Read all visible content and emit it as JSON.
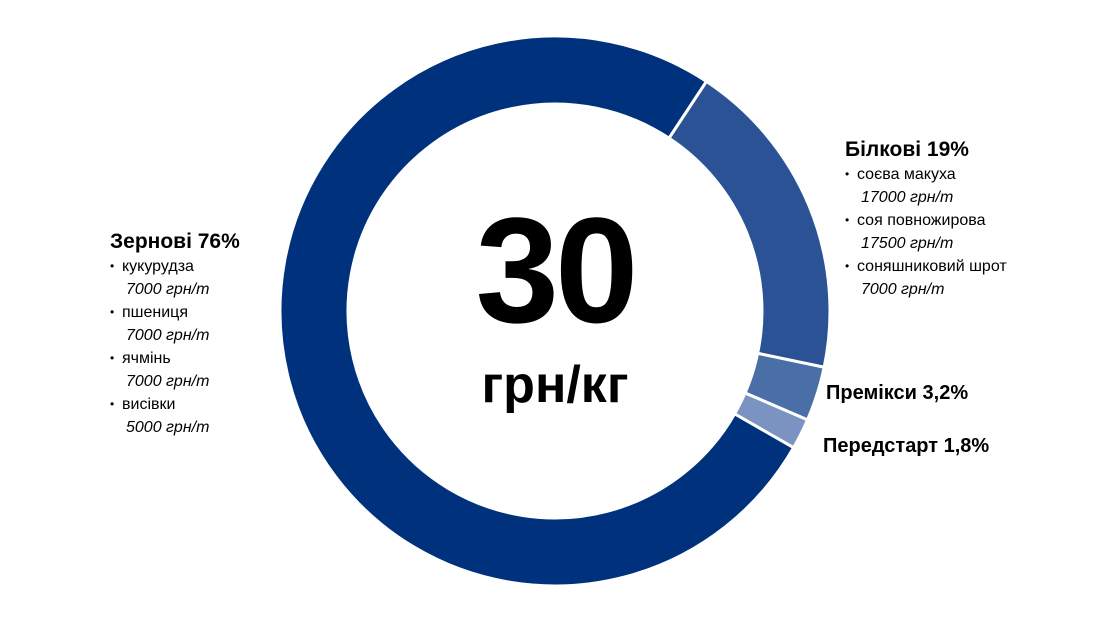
{
  "chart_data": {
    "type": "pie",
    "donut": true,
    "start_angle_deg": 33.4,
    "slices": [
      {
        "label": "Білкові",
        "percent_label": "19%",
        "value": 19,
        "color": "#2a5294"
      },
      {
        "label": "Премікси",
        "percent_label": "3,2%",
        "value": 3.2,
        "color": "#4a6ea6"
      },
      {
        "label": "Передстарт",
        "percent_label": "1,8%",
        "value": 1.8,
        "color": "#7a93c0"
      },
      {
        "label": "Зернові",
        "percent_label": "76%",
        "value": 76,
        "color": "#00317d"
      }
    ],
    "center": {
      "value": "30",
      "unit": "грн/кг"
    },
    "groups": {
      "grain": {
        "title": "Зернові 76%",
        "items": [
          {
            "name": "кукурудза",
            "price": "7000 грн/т"
          },
          {
            "name": "пшениця",
            "price": "7000 грн/т"
          },
          {
            "name": "ячмінь",
            "price": "7000 грн/т"
          },
          {
            "name": "висівки",
            "price": "5000 грн/т"
          }
        ]
      },
      "protein": {
        "title": "Білкові 19%",
        "items": [
          {
            "name": "соєва макуха",
            "price": "17000 грн/т"
          },
          {
            "name": "соя повножирова",
            "price": "17500 грн/т"
          },
          {
            "name": "соняшниковий шрот",
            "price": "7000 грн/т"
          }
        ]
      },
      "premix": {
        "title": "Премікси 3,2%"
      },
      "prestart": {
        "title": "Передстарт 1,8%"
      }
    },
    "bullet": "•"
  }
}
